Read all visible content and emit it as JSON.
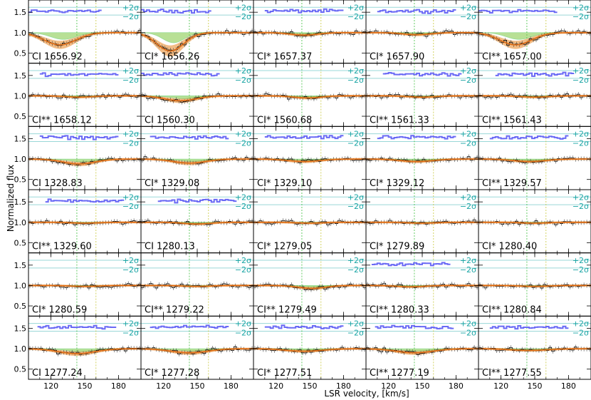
{
  "chart_data": {
    "type": "line",
    "xlabel": "LSR velocity, [km/s]",
    "ylabel": "Normalized flux",
    "xlim": [
      100,
      200
    ],
    "ylim": [
      0.25,
      1.8
    ],
    "x_ticks": [
      "120",
      "150",
      "180"
    ],
    "y_ticks": [
      "0.5",
      "1.0",
      "1.5"
    ],
    "sigma_labels": [
      "+2σ",
      "−2σ"
    ],
    "component_velocities": [
      143,
      160
    ],
    "grid": {
      "rows": 6,
      "cols": 5
    },
    "colors": {
      "data": "#000000",
      "residual": "#6a6af5",
      "sigma_band": "#9ad8d8",
      "component_1": "#3fbf3f",
      "component_2": "#c8c83c",
      "model": "#e46e14",
      "model_band": "#f0b070",
      "component_model": "#7fc840"
    },
    "panels": [
      {
        "label": "CI 1656.92",
        "depth": 0.3,
        "center": 128,
        "width": 14,
        "residual": true
      },
      {
        "label": "CI* 1656.26",
        "depth": 0.45,
        "center": 126,
        "width": 12,
        "residual": true
      },
      {
        "label": "CI* 1657.37",
        "depth": 0.06,
        "center": 145,
        "width": 12,
        "residual": true
      },
      {
        "label": "CI* 1657.90",
        "depth": 0.05,
        "center": 145,
        "width": 12,
        "residual": true
      },
      {
        "label": "CI** 1657.00",
        "depth": 0.3,
        "center": 133,
        "width": 14,
        "residual": true
      },
      {
        "label": "CI** 1658.12",
        "depth": 0.03,
        "center": 145,
        "width": 12,
        "residual": true
      },
      {
        "label": "CI 1560.30",
        "depth": 0.12,
        "center": 135,
        "width": 14,
        "residual": true
      },
      {
        "label": "CI* 1560.68",
        "depth": 0.05,
        "center": 148,
        "width": 12,
        "residual": false
      },
      {
        "label": "CI** 1561.33",
        "depth": 0.03,
        "center": 150,
        "width": 12,
        "residual": true
      },
      {
        "label": "CI** 1561.43",
        "depth": 0.03,
        "center": 150,
        "width": 12,
        "residual": true
      },
      {
        "label": "CI 1328.83",
        "depth": 0.12,
        "center": 145,
        "width": 14,
        "residual": true
      },
      {
        "label": "CI* 1329.08",
        "depth": 0.1,
        "center": 143,
        "width": 14,
        "residual": true
      },
      {
        "label": "CI* 1329.10",
        "depth": 0.06,
        "center": 145,
        "width": 14,
        "residual": true
      },
      {
        "label": "CI* 1329.12",
        "depth": 0.06,
        "center": 145,
        "width": 14,
        "residual": true
      },
      {
        "label": "CI** 1329.57",
        "depth": 0.06,
        "center": 145,
        "width": 14,
        "residual": true
      },
      {
        "label": "CI** 1329.60",
        "depth": 0.02,
        "center": 150,
        "width": 12,
        "residual": true
      },
      {
        "label": "CI 1280.13",
        "depth": 0.04,
        "center": 150,
        "width": 12,
        "residual": true
      },
      {
        "label": "CI* 1279.05",
        "depth": 0.02,
        "center": 150,
        "width": 12,
        "residual": false
      },
      {
        "label": "CI* 1279.89",
        "depth": 0.02,
        "center": 150,
        "width": 12,
        "residual": false
      },
      {
        "label": "CI* 1280.40",
        "depth": 0.02,
        "center": 150,
        "width": 12,
        "residual": false
      },
      {
        "label": "CI* 1280.59",
        "depth": 0.02,
        "center": 150,
        "width": 12,
        "residual": false
      },
      {
        "label": "CI** 1279.22",
        "depth": 0.02,
        "center": 150,
        "width": 12,
        "residual": false
      },
      {
        "label": "CI** 1279.49",
        "depth": 0.07,
        "center": 152,
        "width": 12,
        "residual": false
      },
      {
        "label": "CI** 1280.33",
        "depth": 0.03,
        "center": 140,
        "width": 12,
        "residual": true
      },
      {
        "label": "CI** 1280.84",
        "depth": 0.02,
        "center": 150,
        "width": 12,
        "residual": false
      },
      {
        "label": "CI 1277.24",
        "depth": 0.12,
        "center": 143,
        "width": 16,
        "residual": true
      },
      {
        "label": "CI* 1277.28",
        "depth": 0.1,
        "center": 143,
        "width": 16,
        "residual": true
      },
      {
        "label": "CI* 1277.51",
        "depth": 0.06,
        "center": 145,
        "width": 16,
        "residual": true
      },
      {
        "label": "CI** 1277.19",
        "depth": 0.1,
        "center": 143,
        "width": 16,
        "residual": true
      },
      {
        "label": "CI** 1277.55",
        "depth": 0.04,
        "center": 145,
        "width": 16,
        "residual": true
      }
    ]
  }
}
